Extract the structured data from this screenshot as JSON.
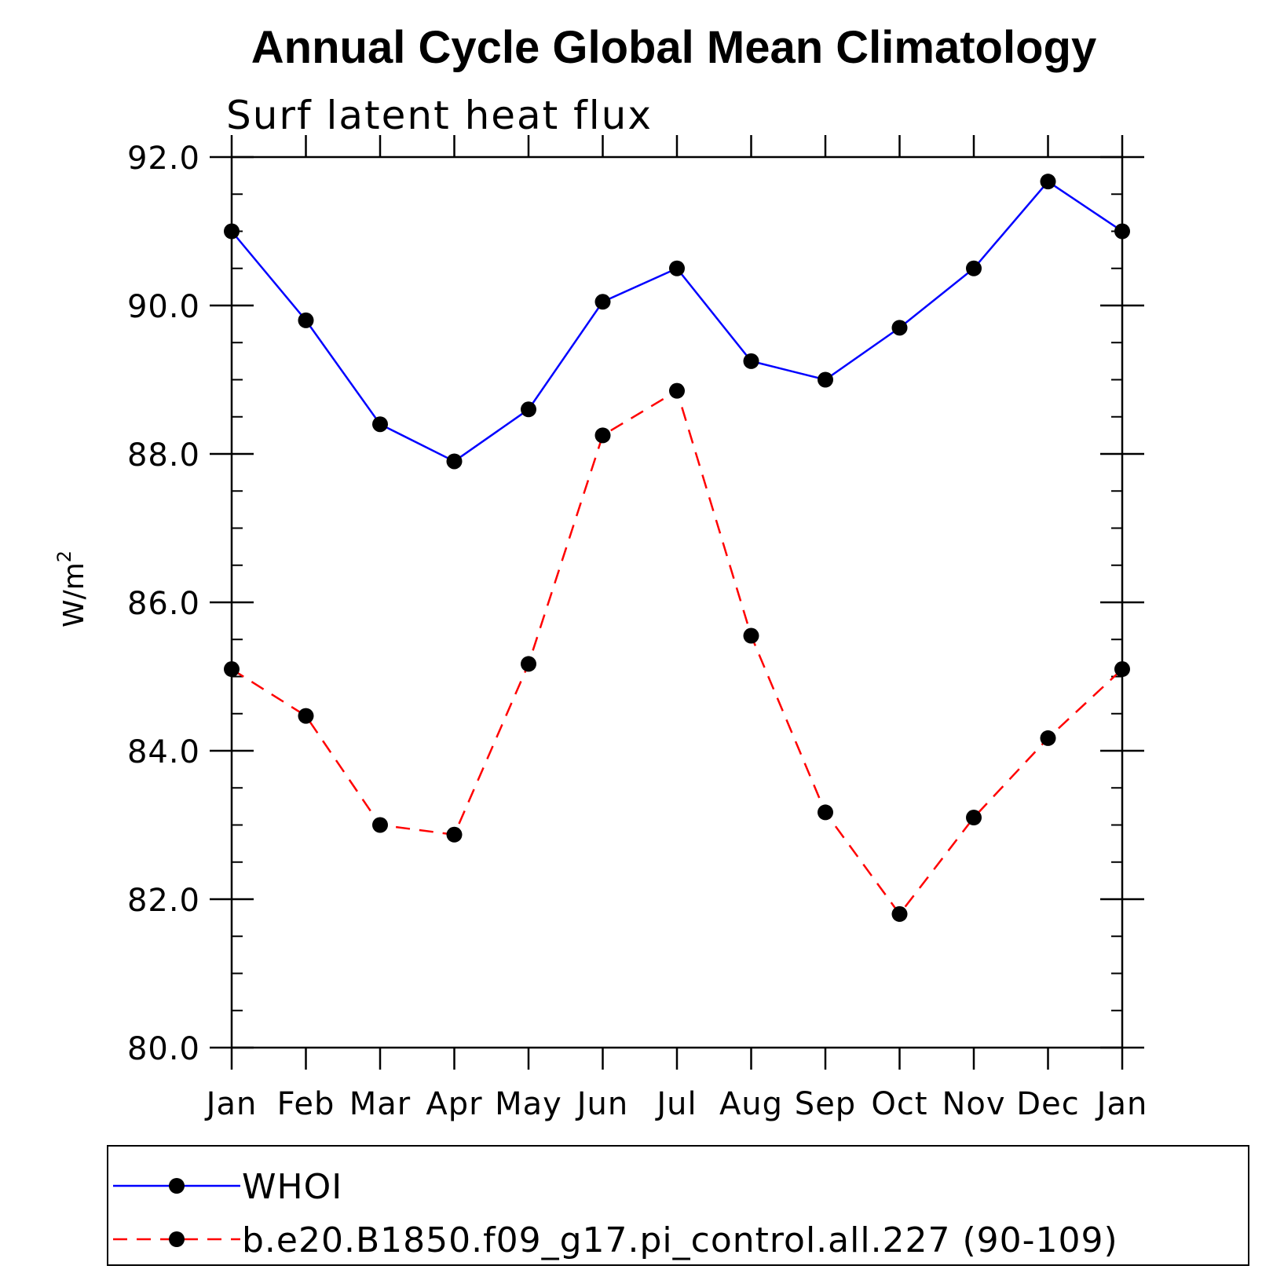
{
  "chart_data": {
    "type": "line",
    "title": "Annual Cycle Global Mean Climatology",
    "subtitle": "Surf latent heat flux",
    "xlabel": "",
    "ylabel": "W/m",
    "ylabel_sup": "2",
    "categories": [
      "Jan",
      "Feb",
      "Mar",
      "Apr",
      "May",
      "Jun",
      "Jul",
      "Aug",
      "Sep",
      "Oct",
      "Nov",
      "Dec",
      "Jan"
    ],
    "ylim": [
      80.0,
      92.0
    ],
    "yticks": [
      "80.0",
      "82.0",
      "84.0",
      "86.0",
      "88.0",
      "90.0",
      "92.0"
    ],
    "ytick_values": [
      80,
      82,
      84,
      86,
      88,
      90,
      92
    ],
    "legend_placement": "bottom",
    "series": [
      {
        "name": "WHOI",
        "color": "#0000ff",
        "line_style": "solid",
        "marker": "filled-circle",
        "values": [
          91.0,
          89.8,
          88.4,
          87.9,
          88.6,
          90.05,
          90.5,
          89.25,
          89.0,
          89.7,
          90.5,
          91.67,
          91.0
        ]
      },
      {
        "name": "b.e20.B1850.f09_g17.pi_control.all.227 (90-109)",
        "color": "#ff0000",
        "line_style": "dashed",
        "marker": "filled-circle",
        "values": [
          85.1,
          84.47,
          83.0,
          82.87,
          85.17,
          88.25,
          88.85,
          85.55,
          83.17,
          81.8,
          83.1,
          84.17,
          85.1
        ]
      }
    ]
  }
}
